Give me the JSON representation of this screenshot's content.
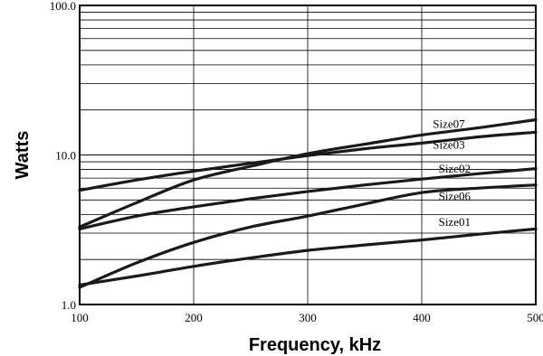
{
  "chart_data": {
    "type": "line",
    "xlabel": "Frequency, kHz",
    "ylabel": "Watts",
    "xlim": [
      100,
      500
    ],
    "ylim": [
      1,
      100
    ],
    "y_scale": "log",
    "grid": true,
    "x_ticks": [
      100,
      200,
      300,
      400,
      500
    ],
    "x_tick_labels": [
      "100",
      "200",
      "300",
      "400",
      "500"
    ],
    "y_ticks": [
      1,
      10,
      100
    ],
    "y_tick_labels": [
      "1.0",
      "10.0",
      "100.0"
    ],
    "series": [
      {
        "name": "Size07",
        "label_at": [
          400,
          15.2
        ],
        "x": [
          100,
          150,
          200,
          250,
          300,
          350,
          400,
          450,
          500
        ],
        "y": [
          3.3,
          4.8,
          6.8,
          8.4,
          10.2,
          11.8,
          13.6,
          15.2,
          17.2
        ]
      },
      {
        "name": "Size03",
        "label_at": [
          400,
          11.0
        ],
        "x": [
          100,
          150,
          200,
          250,
          300,
          350,
          400,
          450,
          500
        ],
        "y": [
          5.8,
          6.8,
          7.8,
          8.8,
          9.9,
          11.0,
          12.0,
          13.2,
          14.2
        ]
      },
      {
        "name": "Size02",
        "label_at": [
          405,
          7.6
        ],
        "x": [
          100,
          150,
          200,
          250,
          300,
          350,
          400,
          450,
          500
        ],
        "y": [
          3.2,
          3.9,
          4.5,
          5.1,
          5.7,
          6.3,
          6.9,
          7.5,
          8.1
        ]
      },
      {
        "name": "Size06",
        "label_at": [
          405,
          5.0
        ],
        "x": [
          100,
          150,
          200,
          250,
          300,
          350,
          400,
          450,
          500
        ],
        "y": [
          1.3,
          1.9,
          2.6,
          3.3,
          3.9,
          4.7,
          5.6,
          6.0,
          6.3
        ]
      },
      {
        "name": "Size01",
        "label_at": [
          405,
          3.35
        ],
        "x": [
          100,
          150,
          200,
          250,
          300,
          350,
          400,
          450,
          500
        ],
        "y": [
          1.35,
          1.55,
          1.8,
          2.05,
          2.3,
          2.5,
          2.7,
          2.95,
          3.2
        ]
      }
    ],
    "colors": {
      "line": "#1a1a1a",
      "grid": "#000000",
      "background": "#ffffff"
    }
  }
}
